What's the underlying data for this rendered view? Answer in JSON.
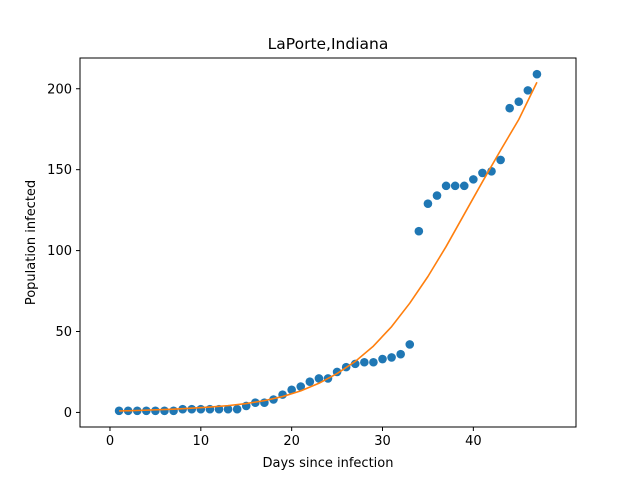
{
  "chart_data": {
    "type": "scatter",
    "title": "LaPorte,Indiana",
    "xlabel": "Days since infection",
    "ylabel": "Population infected",
    "xlim": [
      -3.3,
      51.3
    ],
    "ylim": [
      -9,
      219
    ],
    "xticks": [
      0,
      10,
      20,
      30,
      40
    ],
    "yticks": [
      0,
      50,
      100,
      150,
      200
    ],
    "grid": false,
    "series": [
      {
        "kind": "scatter",
        "color": "#1f77b4",
        "x": [
          1,
          2,
          3,
          4,
          5,
          6,
          7,
          8,
          9,
          10,
          11,
          12,
          13,
          14,
          15,
          16,
          17,
          18,
          19,
          20,
          21,
          22,
          23,
          24,
          25,
          26,
          27,
          28,
          29,
          30,
          31,
          32,
          33,
          34,
          35,
          36,
          37,
          38,
          39,
          40,
          41,
          42,
          43,
          44,
          45,
          46,
          47
        ],
        "y": [
          1,
          1,
          1,
          1,
          1,
          1,
          1,
          2,
          2,
          2,
          2,
          2,
          2,
          2,
          4,
          6,
          6,
          8,
          11,
          14,
          16,
          19,
          21,
          21,
          25,
          28,
          30,
          31,
          31,
          33,
          34,
          36,
          42,
          112,
          129,
          134,
          140,
          140,
          140,
          144,
          148,
          149,
          156,
          188,
          192,
          199,
          209
        ]
      },
      {
        "kind": "line",
        "color": "#ff7f0e",
        "x": [
          1,
          3,
          5,
          7,
          9,
          11,
          13,
          15,
          17,
          19,
          21,
          23,
          25,
          27,
          29,
          31,
          33,
          35,
          37,
          39,
          41,
          43,
          45,
          47
        ],
        "y": [
          0.9,
          1.2,
          1.6,
          2.0,
          2.6,
          3.3,
          4.2,
          5.5,
          7.3,
          9.8,
          13.3,
          18.0,
          24.0,
          31.5,
          41.0,
          53.0,
          67.5,
          84.0,
          102.5,
          122.5,
          142.5,
          162.0,
          181.0,
          204.0
        ]
      }
    ]
  }
}
